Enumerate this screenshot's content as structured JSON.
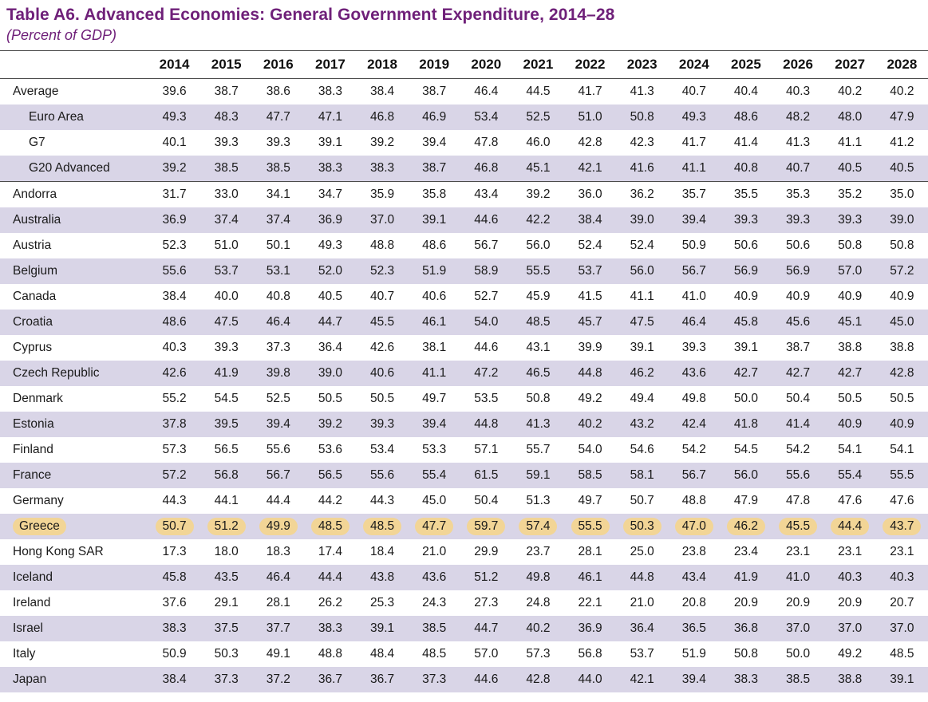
{
  "title": "Table A6. Advanced Economies: General Government Expenditure, 2014–28",
  "subtitle": "(Percent of GDP)",
  "colors": {
    "title_accent": "#6f2079",
    "row_alternate": "#d9d5e7",
    "highlight_pill": "#f2d596"
  },
  "table": {
    "columns": [
      "2014",
      "2015",
      "2016",
      "2017",
      "2018",
      "2019",
      "2020",
      "2021",
      "2022",
      "2023",
      "2024",
      "2025",
      "2026",
      "2027",
      "2028"
    ],
    "rows": [
      {
        "label": "Average",
        "indent": false,
        "highlighted": false,
        "group_end": false,
        "values": [
          "39.6",
          "38.7",
          "38.6",
          "38.3",
          "38.4",
          "38.7",
          "46.4",
          "44.5",
          "41.7",
          "41.3",
          "40.7",
          "40.4",
          "40.3",
          "40.2",
          "40.2"
        ]
      },
      {
        "label": "Euro Area",
        "indent": true,
        "highlighted": false,
        "group_end": false,
        "values": [
          "49.3",
          "48.3",
          "47.7",
          "47.1",
          "46.8",
          "46.9",
          "53.4",
          "52.5",
          "51.0",
          "50.8",
          "49.3",
          "48.6",
          "48.2",
          "48.0",
          "47.9"
        ]
      },
      {
        "label": "G7",
        "indent": true,
        "highlighted": false,
        "group_end": false,
        "values": [
          "40.1",
          "39.3",
          "39.3",
          "39.1",
          "39.2",
          "39.4",
          "47.8",
          "46.0",
          "42.8",
          "42.3",
          "41.7",
          "41.4",
          "41.3",
          "41.1",
          "41.2"
        ]
      },
      {
        "label": "G20 Advanced",
        "indent": true,
        "highlighted": false,
        "group_end": true,
        "values": [
          "39.2",
          "38.5",
          "38.5",
          "38.3",
          "38.3",
          "38.7",
          "46.8",
          "45.1",
          "42.1",
          "41.6",
          "41.1",
          "40.8",
          "40.7",
          "40.5",
          "40.5"
        ]
      },
      {
        "label": "Andorra",
        "indent": false,
        "highlighted": false,
        "group_end": false,
        "values": [
          "31.7",
          "33.0",
          "34.1",
          "34.7",
          "35.9",
          "35.8",
          "43.4",
          "39.2",
          "36.0",
          "36.2",
          "35.7",
          "35.5",
          "35.3",
          "35.2",
          "35.0"
        ]
      },
      {
        "label": "Australia",
        "indent": false,
        "highlighted": false,
        "group_end": false,
        "values": [
          "36.9",
          "37.4",
          "37.4",
          "36.9",
          "37.0",
          "39.1",
          "44.6",
          "42.2",
          "38.4",
          "39.0",
          "39.4",
          "39.3",
          "39.3",
          "39.3",
          "39.0"
        ]
      },
      {
        "label": "Austria",
        "indent": false,
        "highlighted": false,
        "group_end": false,
        "values": [
          "52.3",
          "51.0",
          "50.1",
          "49.3",
          "48.8",
          "48.6",
          "56.7",
          "56.0",
          "52.4",
          "52.4",
          "50.9",
          "50.6",
          "50.6",
          "50.8",
          "50.8"
        ]
      },
      {
        "label": "Belgium",
        "indent": false,
        "highlighted": false,
        "group_end": false,
        "values": [
          "55.6",
          "53.7",
          "53.1",
          "52.0",
          "52.3",
          "51.9",
          "58.9",
          "55.5",
          "53.7",
          "56.0",
          "56.7",
          "56.9",
          "56.9",
          "57.0",
          "57.2"
        ]
      },
      {
        "label": "Canada",
        "indent": false,
        "highlighted": false,
        "group_end": false,
        "values": [
          "38.4",
          "40.0",
          "40.8",
          "40.5",
          "40.7",
          "40.6",
          "52.7",
          "45.9",
          "41.5",
          "41.1",
          "41.0",
          "40.9",
          "40.9",
          "40.9",
          "40.9"
        ]
      },
      {
        "label": "Croatia",
        "indent": false,
        "highlighted": false,
        "group_end": false,
        "values": [
          "48.6",
          "47.5",
          "46.4",
          "44.7",
          "45.5",
          "46.1",
          "54.0",
          "48.5",
          "45.7",
          "47.5",
          "46.4",
          "45.8",
          "45.6",
          "45.1",
          "45.0"
        ]
      },
      {
        "label": "Cyprus",
        "indent": false,
        "highlighted": false,
        "group_end": false,
        "values": [
          "40.3",
          "39.3",
          "37.3",
          "36.4",
          "42.6",
          "38.1",
          "44.6",
          "43.1",
          "39.9",
          "39.1",
          "39.3",
          "39.1",
          "38.7",
          "38.8",
          "38.8"
        ]
      },
      {
        "label": "Czech Republic",
        "indent": false,
        "highlighted": false,
        "group_end": false,
        "values": [
          "42.6",
          "41.9",
          "39.8",
          "39.0",
          "40.6",
          "41.1",
          "47.2",
          "46.5",
          "44.8",
          "46.2",
          "43.6",
          "42.7",
          "42.7",
          "42.7",
          "42.8"
        ]
      },
      {
        "label": "Denmark",
        "indent": false,
        "highlighted": false,
        "group_end": false,
        "values": [
          "55.2",
          "54.5",
          "52.5",
          "50.5",
          "50.5",
          "49.7",
          "53.5",
          "50.8",
          "49.2",
          "49.4",
          "49.8",
          "50.0",
          "50.4",
          "50.5",
          "50.5"
        ]
      },
      {
        "label": "Estonia",
        "indent": false,
        "highlighted": false,
        "group_end": false,
        "values": [
          "37.8",
          "39.5",
          "39.4",
          "39.2",
          "39.3",
          "39.4",
          "44.8",
          "41.3",
          "40.2",
          "43.2",
          "42.4",
          "41.8",
          "41.4",
          "40.9",
          "40.9"
        ]
      },
      {
        "label": "Finland",
        "indent": false,
        "highlighted": false,
        "group_end": false,
        "values": [
          "57.3",
          "56.5",
          "55.6",
          "53.6",
          "53.4",
          "53.3",
          "57.1",
          "55.7",
          "54.0",
          "54.6",
          "54.2",
          "54.5",
          "54.2",
          "54.1",
          "54.1"
        ]
      },
      {
        "label": "France",
        "indent": false,
        "highlighted": false,
        "group_end": false,
        "values": [
          "57.2",
          "56.8",
          "56.7",
          "56.5",
          "55.6",
          "55.4",
          "61.5",
          "59.1",
          "58.5",
          "58.1",
          "56.7",
          "56.0",
          "55.6",
          "55.4",
          "55.5"
        ]
      },
      {
        "label": "Germany",
        "indent": false,
        "highlighted": false,
        "group_end": false,
        "values": [
          "44.3",
          "44.1",
          "44.4",
          "44.2",
          "44.3",
          "45.0",
          "50.4",
          "51.3",
          "49.7",
          "50.7",
          "48.8",
          "47.9",
          "47.8",
          "47.6",
          "47.6"
        ]
      },
      {
        "label": "Greece",
        "indent": false,
        "highlighted": true,
        "group_end": false,
        "values": [
          "50.7",
          "51.2",
          "49.9",
          "48.5",
          "48.5",
          "47.7",
          "59.7",
          "57.4",
          "55.5",
          "50.3",
          "47.0",
          "46.2",
          "45.5",
          "44.4",
          "43.7"
        ]
      },
      {
        "label": "Hong Kong SAR",
        "indent": false,
        "highlighted": false,
        "group_end": false,
        "values": [
          "17.3",
          "18.0",
          "18.3",
          "17.4",
          "18.4",
          "21.0",
          "29.9",
          "23.7",
          "28.1",
          "25.0",
          "23.8",
          "23.4",
          "23.1",
          "23.1",
          "23.1"
        ]
      },
      {
        "label": "Iceland",
        "indent": false,
        "highlighted": false,
        "group_end": false,
        "values": [
          "45.8",
          "43.5",
          "46.4",
          "44.4",
          "43.8",
          "43.6",
          "51.2",
          "49.8",
          "46.1",
          "44.8",
          "43.4",
          "41.9",
          "41.0",
          "40.3",
          "40.3"
        ]
      },
      {
        "label": "Ireland",
        "indent": false,
        "highlighted": false,
        "group_end": false,
        "values": [
          "37.6",
          "29.1",
          "28.1",
          "26.2",
          "25.3",
          "24.3",
          "27.3",
          "24.8",
          "22.1",
          "21.0",
          "20.8",
          "20.9",
          "20.9",
          "20.9",
          "20.7"
        ]
      },
      {
        "label": "Israel",
        "indent": false,
        "highlighted": false,
        "group_end": false,
        "values": [
          "38.3",
          "37.5",
          "37.7",
          "38.3",
          "39.1",
          "38.5",
          "44.7",
          "40.2",
          "36.9",
          "36.4",
          "36.5",
          "36.8",
          "37.0",
          "37.0",
          "37.0"
        ]
      },
      {
        "label": "Italy",
        "indent": false,
        "highlighted": false,
        "group_end": false,
        "values": [
          "50.9",
          "50.3",
          "49.1",
          "48.8",
          "48.4",
          "48.5",
          "57.0",
          "57.3",
          "56.8",
          "53.7",
          "51.9",
          "50.8",
          "50.0",
          "49.2",
          "48.5"
        ]
      },
      {
        "label": "Japan",
        "indent": false,
        "highlighted": false,
        "group_end": false,
        "values": [
          "38.4",
          "37.3",
          "37.2",
          "36.7",
          "36.7",
          "37.3",
          "44.6",
          "42.8",
          "44.0",
          "42.1",
          "39.4",
          "38.3",
          "38.5",
          "38.8",
          "39.1"
        ]
      }
    ]
  }
}
